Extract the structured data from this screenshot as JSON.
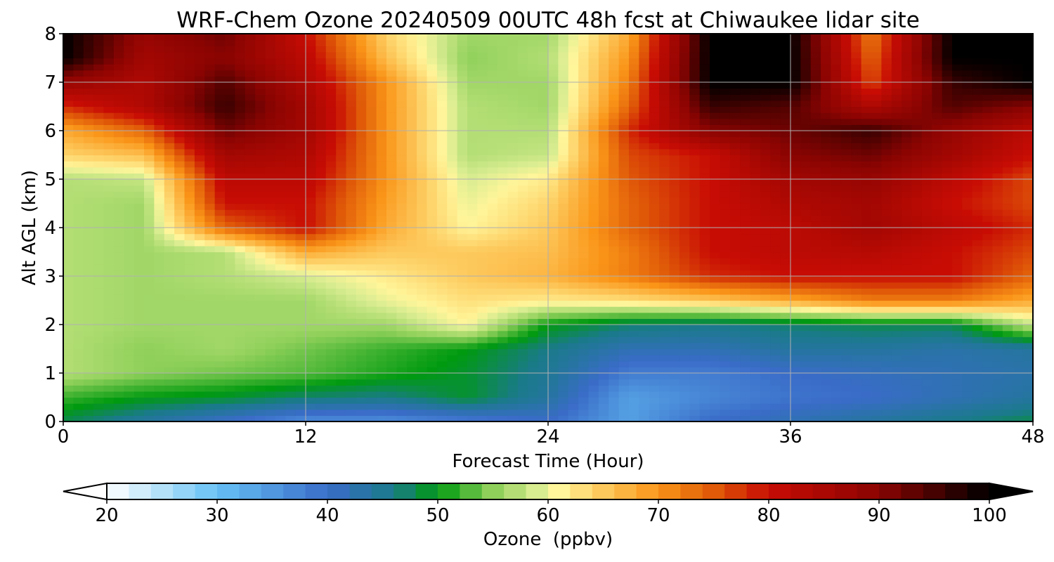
{
  "chart_data": {
    "type": "heatmap",
    "title": "WRF-Chem Ozone  20240509 00UTC 48h fcst at Chiwaukee lidar site",
    "xlabel": "Forecast Time (Hour)",
    "ylabel": "Alt AGL (km)",
    "xlim": [
      0,
      48
    ],
    "ylim": [
      0,
      8
    ],
    "x_ticks": [
      0,
      12,
      24,
      36,
      48
    ],
    "y_ticks": [
      0,
      1,
      2,
      3,
      4,
      5,
      6,
      7,
      8
    ],
    "grid": true,
    "x": [
      0,
      4,
      8,
      12,
      16,
      20,
      24,
      28,
      32,
      36,
      40,
      44,
      48
    ],
    "y": [
      0,
      0.5,
      1,
      1.5,
      2,
      2.5,
      3,
      3.5,
      4,
      4.5,
      5,
      5.5,
      6,
      6.5,
      7,
      7.5,
      8
    ],
    "z_unit": "ppbv",
    "z_rows_by_altitude": [
      [
        48,
        44,
        40,
        36,
        36,
        38,
        40,
        34,
        40,
        42,
        44,
        46,
        48
      ],
      [
        52,
        50,
        49,
        47,
        46,
        49,
        44,
        34,
        37,
        39,
        40,
        42,
        44
      ],
      [
        57,
        55,
        54,
        53,
        51,
        49,
        45,
        38,
        38,
        40,
        41,
        42,
        43
      ],
      [
        57,
        55,
        56,
        54,
        52,
        50,
        46,
        42,
        42,
        44,
        44,
        43,
        44
      ],
      [
        57,
        56,
        56,
        56,
        56,
        61,
        50,
        47,
        46,
        47,
        48,
        48,
        58
      ],
      [
        57,
        56,
        56,
        56,
        60,
        63,
        62,
        63,
        65,
        68,
        72,
        72,
        68
      ],
      [
        57,
        56,
        57,
        59,
        62,
        65,
        67,
        72,
        78,
        80,
        80,
        80,
        74
      ],
      [
        57,
        56,
        57,
        68,
        65,
        65,
        66,
        72,
        80,
        82,
        83,
        80,
        76
      ],
      [
        57,
        56,
        74,
        80,
        68,
        61,
        65,
        74,
        80,
        82,
        86,
        82,
        78
      ],
      [
        57,
        56,
        80,
        80,
        69,
        60,
        64,
        74,
        80,
        84,
        86,
        80,
        76
      ],
      [
        57,
        58,
        82,
        82,
        70,
        59,
        62,
        75,
        80,
        86,
        88,
        82,
        76
      ],
      [
        64,
        66,
        86,
        84,
        70,
        57,
        58,
        76,
        80,
        90,
        92,
        86,
        80
      ],
      [
        68,
        74,
        92,
        86,
        70,
        57,
        57,
        78,
        90,
        92,
        96,
        88,
        82
      ],
      [
        78,
        84,
        96,
        86,
        70,
        57,
        56,
        74,
        96,
        94,
        84,
        94,
        90
      ],
      [
        88,
        84,
        94,
        84,
        70,
        56,
        56,
        72,
        100,
        100,
        76,
        96,
        100
      ],
      [
        100,
        86,
        90,
        82,
        66,
        55,
        57,
        70,
        100,
        100,
        74,
        100,
        100
      ],
      [
        100,
        88,
        92,
        80,
        64,
        56,
        56,
        68,
        100,
        100,
        72,
        100,
        100
      ]
    ],
    "colorbar": {
      "label": "Ozone  (ppbv)",
      "min": 20,
      "max": 100,
      "ticks": [
        20,
        30,
        40,
        50,
        60,
        70,
        80,
        90,
        100
      ],
      "extend": "both",
      "stops": [
        {
          "v": 20,
          "c": "#ffffff"
        },
        {
          "v": 30,
          "c": "#66c2f5"
        },
        {
          "v": 40,
          "c": "#3a6cc8"
        },
        {
          "v": 46,
          "c": "#1a7a8a"
        },
        {
          "v": 50,
          "c": "#009a10"
        },
        {
          "v": 55,
          "c": "#8fd05a"
        },
        {
          "v": 59,
          "c": "#d8ec90"
        },
        {
          "v": 61,
          "c": "#fff59a"
        },
        {
          "v": 65,
          "c": "#fdc95c"
        },
        {
          "v": 70,
          "c": "#fa9518"
        },
        {
          "v": 75,
          "c": "#e05a08"
        },
        {
          "v": 80,
          "c": "#c80c04"
        },
        {
          "v": 90,
          "c": "#8a0402"
        },
        {
          "v": 100,
          "c": "#000000"
        }
      ]
    }
  }
}
